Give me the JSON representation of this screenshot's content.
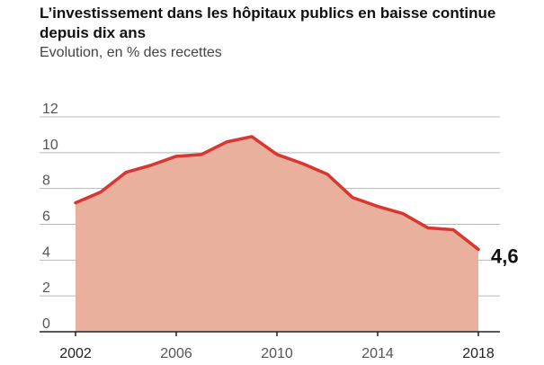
{
  "header": {
    "title": "L’investissement dans les hôpitaux publics en baisse continue depuis dix ans",
    "subtitle": "Evolution, en % des recettes"
  },
  "chart_data": {
    "type": "area",
    "title": "L’investissement dans les hôpitaux publics en baisse continue depuis dix ans",
    "subtitle": "Evolution, en % des recettes",
    "xlabel": "",
    "ylabel": "",
    "x": [
      2002,
      2003,
      2004,
      2005,
      2006,
      2007,
      2008,
      2009,
      2010,
      2011,
      2012,
      2013,
      2014,
      2015,
      2016,
      2017,
      2018
    ],
    "values": [
      7.2,
      7.8,
      8.9,
      9.3,
      9.8,
      9.9,
      10.6,
      10.9,
      9.9,
      9.4,
      8.8,
      7.5,
      7.0,
      6.6,
      5.8,
      5.7,
      4.6
    ],
    "ylim": [
      0,
      12
    ],
    "xlim": [
      2002,
      2018
    ],
    "yticks": [
      0,
      2,
      4,
      6,
      8,
      10,
      12
    ],
    "xticks": [
      "2002",
      "2006",
      "2010",
      "2014",
      "2018"
    ],
    "end_label": "4,6",
    "grid": true,
    "colors": {
      "line": "#d9362f",
      "fill": "#e8b09d",
      "grid": "#b8b8b8",
      "axis": "#222222",
      "tick_text": "#555555",
      "tick_text_strong": "#222222"
    }
  }
}
